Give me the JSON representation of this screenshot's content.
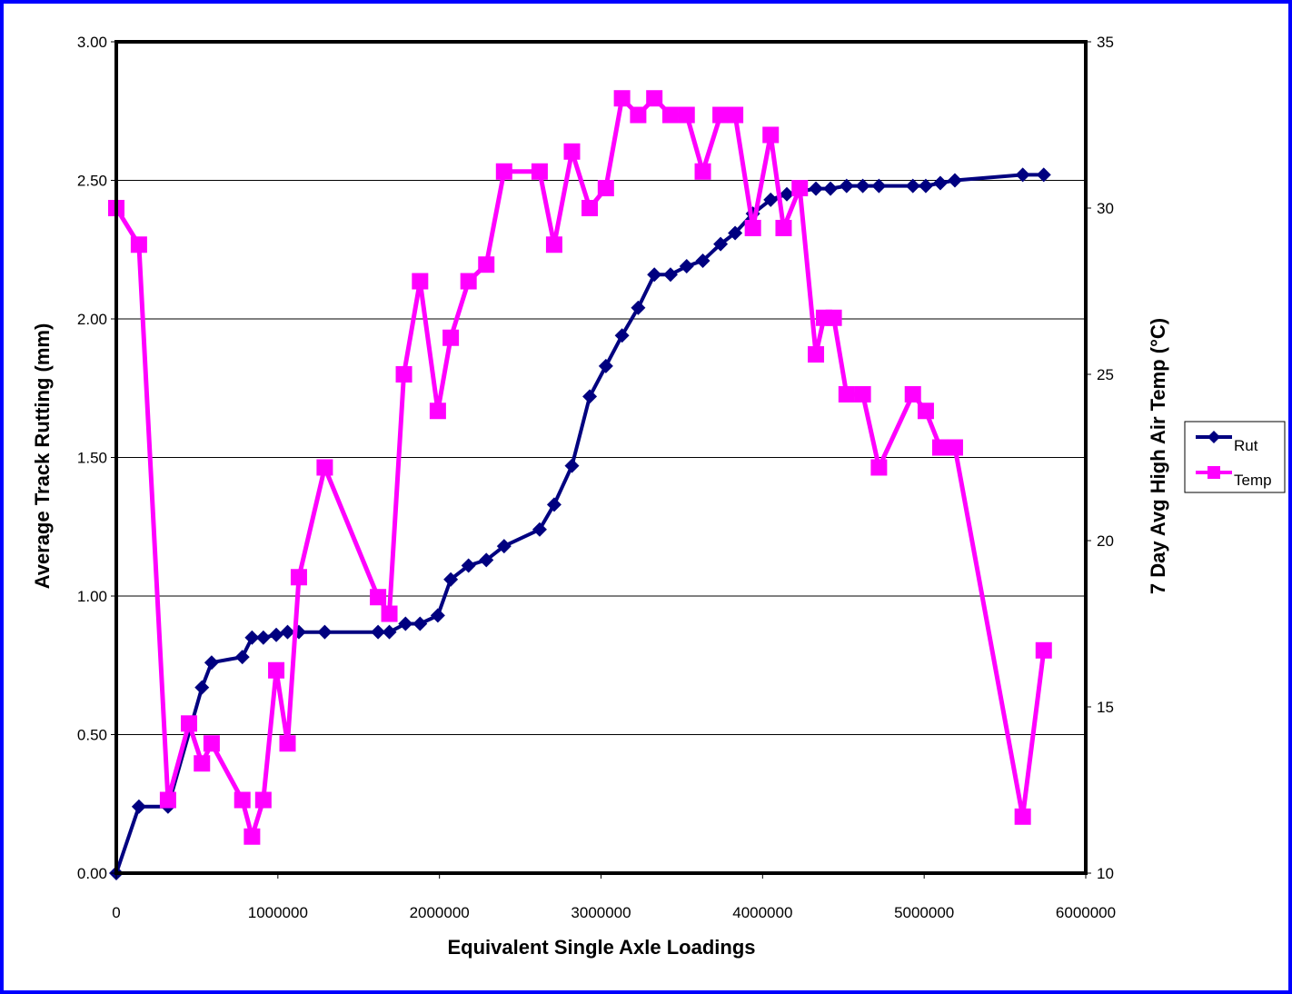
{
  "chart_data": {
    "type": "line",
    "xlabel": "Equivalent Single Axle Loadings",
    "ylabel_left": "Average Track Rutting (mm)",
    "ylabel_right": "7 Day Avg High Air Temp (°C)",
    "xlim": [
      0,
      6000000
    ],
    "ylim_left": [
      0,
      3
    ],
    "ylim_right": [
      10,
      35
    ],
    "x_ticks": [
      "0",
      "1000000",
      "2000000",
      "3000000",
      "4000000",
      "5000000",
      "6000000"
    ],
    "y_ticks_left": [
      "0.00",
      "0.50",
      "1.00",
      "1.50",
      "2.00",
      "2.50",
      "3.00"
    ],
    "y_ticks_right": [
      "10",
      "15",
      "20",
      "25",
      "30",
      "35"
    ],
    "grid": "horizontal",
    "legend_position": "right",
    "colors": {
      "Rut": "#000080",
      "Temp": "#ff00ff",
      "frame": "#0000ff"
    },
    "series": [
      {
        "name": "Rut",
        "axis": "left",
        "marker": "diamond",
        "x": [
          0,
          140000,
          320000,
          530000,
          590000,
          780000,
          840000,
          910000,
          990000,
          1060000,
          1130000,
          1290000,
          1620000,
          1690000,
          1790000,
          1880000,
          1990000,
          2070000,
          2180000,
          2290000,
          2400000,
          2620000,
          2710000,
          2820000,
          2930000,
          3030000,
          3130000,
          3230000,
          3330000,
          3430000,
          3530000,
          3630000,
          3740000,
          3830000,
          3940000,
          4050000,
          4150000,
          4230000,
          4330000,
          4420000,
          4520000,
          4620000,
          4720000,
          4930000,
          5010000,
          5100000,
          5190000,
          5610000,
          5740000
        ],
        "values": [
          0.0,
          0.24,
          0.24,
          0.67,
          0.76,
          0.78,
          0.85,
          0.85,
          0.86,
          0.87,
          0.87,
          0.87,
          0.87,
          0.87,
          0.9,
          0.9,
          0.93,
          1.06,
          1.11,
          1.13,
          1.18,
          1.24,
          1.33,
          1.47,
          1.72,
          1.83,
          1.94,
          2.04,
          2.16,
          2.16,
          2.19,
          2.21,
          2.27,
          2.31,
          2.38,
          2.43,
          2.45,
          2.46,
          2.47,
          2.47,
          2.48,
          2.48,
          2.48,
          2.48,
          2.48,
          2.49,
          2.5,
          2.52,
          2.52
        ]
      },
      {
        "name": "Temp",
        "axis": "right",
        "marker": "square",
        "x": [
          0,
          140000,
          320000,
          450000,
          530000,
          590000,
          780000,
          840000,
          910000,
          990000,
          1060000,
          1130000,
          1290000,
          1620000,
          1690000,
          1780000,
          1880000,
          1990000,
          2070000,
          2180000,
          2290000,
          2400000,
          2620000,
          2710000,
          2820000,
          2930000,
          3030000,
          3130000,
          3230000,
          3330000,
          3430000,
          3530000,
          3630000,
          3740000,
          3830000,
          3940000,
          4050000,
          4130000,
          4230000,
          4330000,
          4380000,
          4440000,
          4520000,
          4620000,
          4720000,
          4930000,
          5010000,
          5100000,
          5190000,
          5610000,
          5740000
        ],
        "values": [
          30.0,
          28.9,
          12.2,
          14.5,
          13.3,
          13.9,
          12.2,
          11.1,
          12.2,
          16.1,
          13.9,
          18.9,
          22.2,
          18.3,
          17.8,
          25.0,
          27.8,
          23.9,
          26.1,
          27.8,
          28.3,
          31.1,
          31.1,
          28.9,
          31.7,
          30.0,
          30.6,
          33.3,
          32.8,
          33.3,
          32.8,
          32.8,
          31.1,
          32.8,
          32.8,
          29.4,
          32.2,
          29.4,
          30.6,
          25.6,
          26.7,
          26.7,
          24.4,
          24.4,
          22.2,
          24.4,
          23.9,
          22.8,
          22.8,
          11.7,
          16.7
        ]
      }
    ]
  }
}
